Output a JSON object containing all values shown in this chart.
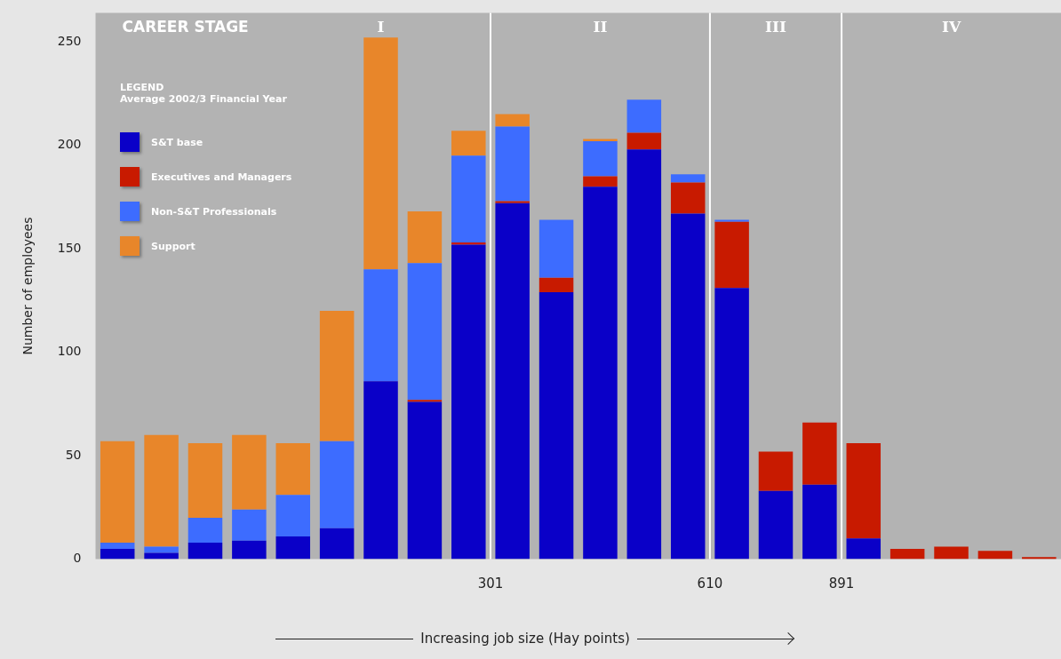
{
  "chart_data": {
    "type": "bar",
    "stacked": true,
    "subtitle": "Average 2002/3 Financial Year",
    "legend_title": "LEGEND",
    "xlabel": "Increasing job size (Hay points)",
    "ylabel": "Number of employees",
    "categories": [
      null,
      null,
      null,
      null,
      null,
      null,
      null,
      null,
      null,
      null,
      null,
      null,
      null,
      null,
      null,
      null,
      null,
      null,
      null,
      null,
      null,
      null
    ],
    "series": [
      {
        "name": "S&T base",
        "color": "#0a00c8",
        "values": [
          5,
          3,
          8,
          9,
          11,
          15,
          86,
          76,
          152,
          172,
          129,
          180,
          198,
          167,
          131,
          33,
          36,
          10,
          0,
          0,
          0,
          0
        ]
      },
      {
        "name": "Executives and Managers",
        "color": "#c81a00",
        "values": [
          0,
          0,
          0,
          0,
          0,
          0,
          0,
          1,
          1,
          1,
          7,
          5,
          8,
          15,
          32,
          19,
          30,
          46,
          5,
          6,
          4,
          1
        ]
      },
      {
        "name": "Non-S&T Professionals",
        "color": "#3d6cff",
        "values": [
          3,
          3,
          12,
          15,
          20,
          42,
          54,
          66,
          42,
          36,
          28,
          17,
          16,
          4,
          1,
          0,
          0,
          0,
          0,
          0,
          0,
          0
        ]
      },
      {
        "name": "Support",
        "color": "#e8862a",
        "values": [
          49,
          54,
          36,
          36,
          25,
          63,
          112,
          25,
          12,
          6,
          0,
          1,
          0,
          0,
          0,
          0,
          0,
          0,
          0,
          0,
          0,
          0
        ]
      }
    ],
    "ylim": [
      0,
      264
    ],
    "yticks": [
      0,
      50,
      100,
      150,
      200,
      250
    ],
    "grid": false,
    "legend": "top left",
    "annotations": [
      "CAREER STAGE",
      "I",
      "II",
      "III",
      "IV",
      "301",
      "610",
      "891"
    ]
  }
}
